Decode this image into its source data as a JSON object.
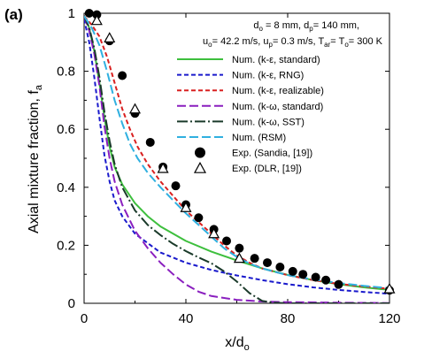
{
  "chart_data": {
    "type": "line",
    "panel_label": "(a)",
    "xlabel": "x/d",
    "xlabel_sub": "o",
    "ylabel": "Axial mixture fraction, f",
    "ylabel_sub": "a",
    "xlim": [
      0,
      120
    ],
    "ylim": [
      0,
      1
    ],
    "x_ticks": [
      0,
      40,
      80,
      120
    ],
    "y_ticks": [
      0,
      0.2,
      0.4,
      0.6,
      0.8,
      1
    ],
    "x_tick_labels": [
      "0",
      "40",
      "80",
      "120"
    ],
    "y_tick_labels": [
      "0",
      "0.2",
      "0.4",
      "0.6",
      "0.8",
      "1"
    ],
    "grid": false,
    "legend_position": "top-right",
    "conditions": {
      "line1": {
        "a_main": "d",
        "a_sub": "o",
        "a_val": " = 8 mm, ",
        "b_main": "d",
        "b_sub": "p",
        "b_val": "= 140 mm,"
      },
      "line2": {
        "a_main": "u",
        "a_sub": "o",
        "a_val": "= 42.2 m/s, ",
        "b_main": "u",
        "b_sub": "p",
        "b_val": "= 0.3 m/s, ",
        "c_main": "T",
        "c_sub": "ar",
        "c_val": "= ",
        "d_main": "T",
        "d_sub": "o",
        "d_val": "= 300 K"
      }
    },
    "series": [
      {
        "name": "Num. (k-ε, standard)",
        "kind": "line",
        "color": "#3dbf3d",
        "dash": "solid",
        "points": [
          [
            0,
            0.99
          ],
          [
            2,
            0.95
          ],
          [
            4,
            0.87
          ],
          [
            6,
            0.76
          ],
          [
            8,
            0.64
          ],
          [
            10,
            0.54
          ],
          [
            12,
            0.47
          ],
          [
            15,
            0.41
          ],
          [
            20,
            0.345
          ],
          [
            25,
            0.3
          ],
          [
            30,
            0.265
          ],
          [
            40,
            0.215
          ],
          [
            50,
            0.178
          ],
          [
            60,
            0.148
          ],
          [
            70,
            0.12
          ],
          [
            80,
            0.098
          ],
          [
            90,
            0.08
          ],
          [
            100,
            0.066
          ],
          [
            110,
            0.055
          ],
          [
            120,
            0.046
          ]
        ]
      },
      {
        "name": "Num. (k-ε, RNG)",
        "kind": "line",
        "color": "#1a1acc",
        "dash": "dash",
        "points": [
          [
            0,
            0.98
          ],
          [
            2,
            0.9
          ],
          [
            4,
            0.78
          ],
          [
            6,
            0.64
          ],
          [
            8,
            0.51
          ],
          [
            10,
            0.42
          ],
          [
            12,
            0.355
          ],
          [
            15,
            0.3
          ],
          [
            20,
            0.24
          ],
          [
            30,
            0.175
          ],
          [
            40,
            0.14
          ],
          [
            50,
            0.115
          ],
          [
            60,
            0.096
          ],
          [
            70,
            0.08
          ],
          [
            80,
            0.066
          ],
          [
            90,
            0.055
          ],
          [
            100,
            0.046
          ],
          [
            110,
            0.039
          ],
          [
            120,
            0.033
          ]
        ]
      },
      {
        "name": "Num. (k-ε, realizable)",
        "kind": "line",
        "color": "#d92020",
        "dash": "dash",
        "points": [
          [
            0,
            0.99
          ],
          [
            3,
            0.96
          ],
          [
            6,
            0.92
          ],
          [
            9,
            0.85
          ],
          [
            12,
            0.76
          ],
          [
            15,
            0.67
          ],
          [
            18,
            0.6
          ],
          [
            21,
            0.54
          ],
          [
            25,
            0.48
          ],
          [
            30,
            0.42
          ],
          [
            35,
            0.37
          ],
          [
            40,
            0.32
          ],
          [
            45,
            0.28
          ],
          [
            50,
            0.24
          ],
          [
            55,
            0.2
          ],
          [
            60,
            0.165
          ],
          [
            65,
            0.14
          ],
          [
            70,
            0.12
          ],
          [
            80,
            0.097
          ],
          [
            90,
            0.08
          ],
          [
            100,
            0.067
          ],
          [
            110,
            0.058
          ],
          [
            120,
            0.05
          ]
        ]
      },
      {
        "name": "Num. (k-ω, standard)",
        "kind": "line",
        "color": "#8a1fbf",
        "dash": "longdash",
        "points": [
          [
            0,
            0.99
          ],
          [
            2,
            0.94
          ],
          [
            4,
            0.86
          ],
          [
            6,
            0.75
          ],
          [
            8,
            0.61
          ],
          [
            10,
            0.5
          ],
          [
            12,
            0.42
          ],
          [
            15,
            0.34
          ],
          [
            20,
            0.25
          ],
          [
            25,
            0.19
          ],
          [
            30,
            0.14
          ],
          [
            35,
            0.1
          ],
          [
            40,
            0.065
          ],
          [
            45,
            0.04
          ],
          [
            50,
            0.025
          ],
          [
            60,
            0.012
          ],
          [
            70,
            0.006
          ],
          [
            80,
            0.004
          ],
          [
            100,
            0.002
          ],
          [
            120,
            0.001
          ]
        ]
      },
      {
        "name": "Num. (k-ω, SST)",
        "kind": "line",
        "color": "#1a3a2a",
        "dash": "dashdot",
        "points": [
          [
            0,
            0.99
          ],
          [
            2,
            0.95
          ],
          [
            4,
            0.88
          ],
          [
            6,
            0.78
          ],
          [
            8,
            0.66
          ],
          [
            10,
            0.56
          ],
          [
            12,
            0.48
          ],
          [
            15,
            0.4
          ],
          [
            20,
            0.32
          ],
          [
            25,
            0.27
          ],
          [
            30,
            0.235
          ],
          [
            35,
            0.205
          ],
          [
            40,
            0.18
          ],
          [
            45,
            0.158
          ],
          [
            50,
            0.138
          ],
          [
            55,
            0.11
          ],
          [
            60,
            0.075
          ],
          [
            65,
            0.035
          ],
          [
            70,
            0.008
          ],
          [
            75,
            0.002
          ],
          [
            80,
            0.0
          ],
          [
            120,
            0.0
          ]
        ]
      },
      {
        "name": "Num. (RSM)",
        "kind": "line",
        "color": "#30b0e0",
        "dash": "longdash",
        "points": [
          [
            0,
            0.99
          ],
          [
            3,
            0.95
          ],
          [
            6,
            0.89
          ],
          [
            9,
            0.8
          ],
          [
            12,
            0.7
          ],
          [
            15,
            0.62
          ],
          [
            18,
            0.55
          ],
          [
            21,
            0.5
          ],
          [
            25,
            0.45
          ],
          [
            30,
            0.4
          ],
          [
            35,
            0.355
          ],
          [
            40,
            0.31
          ],
          [
            45,
            0.27
          ],
          [
            50,
            0.23
          ],
          [
            55,
            0.19
          ],
          [
            60,
            0.16
          ],
          [
            65,
            0.137
          ],
          [
            70,
            0.12
          ],
          [
            80,
            0.097
          ],
          [
            90,
            0.082
          ],
          [
            100,
            0.07
          ],
          [
            110,
            0.06
          ],
          [
            120,
            0.052
          ]
        ]
      },
      {
        "name": "Exp. (Sandia, [19])",
        "kind": "marker",
        "marker": "circle",
        "color": "#000000",
        "points": [
          [
            2,
            1.0
          ],
          [
            5,
            0.995
          ],
          [
            10,
            0.905
          ],
          [
            15,
            0.785
          ],
          [
            20,
            0.655
          ],
          [
            26,
            0.555
          ],
          [
            31,
            0.47
          ],
          [
            36,
            0.405
          ],
          [
            40,
            0.34
          ],
          [
            45,
            0.295
          ],
          [
            51,
            0.255
          ],
          [
            56,
            0.215
          ],
          [
            61,
            0.19
          ],
          [
            67,
            0.155
          ],
          [
            72,
            0.14
          ],
          [
            77,
            0.125
          ],
          [
            82,
            0.11
          ],
          [
            86,
            0.1
          ],
          [
            91,
            0.09
          ],
          [
            95,
            0.08
          ],
          [
            100,
            0.065
          ],
          [
            120,
            0.045
          ]
        ]
      },
      {
        "name": "Exp. (DLR, [19])",
        "kind": "marker",
        "marker": "triangle",
        "color": "#000000",
        "points": [
          [
            5,
            0.975
          ],
          [
            10,
            0.915
          ],
          [
            20,
            0.67
          ],
          [
            31,
            0.465
          ],
          [
            40,
            0.33
          ],
          [
            51,
            0.24
          ],
          [
            61,
            0.155
          ],
          [
            120,
            0.05
          ]
        ]
      }
    ]
  }
}
